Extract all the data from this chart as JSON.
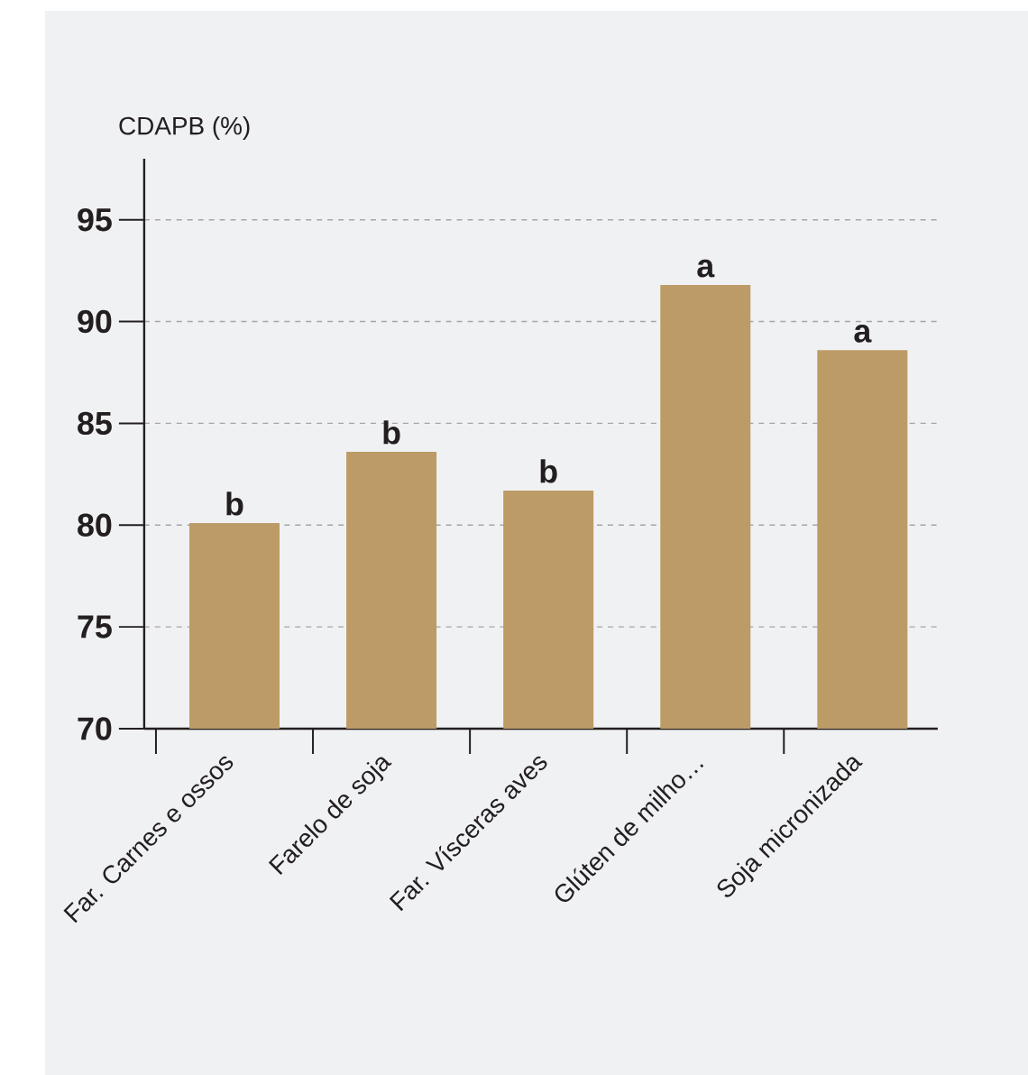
{
  "chart_data": {
    "type": "bar",
    "ylabel": "CDAPB (%)",
    "categories": [
      "Far. Carnes e ossos",
      "Farelo de soja",
      "Far. Vísceras aves",
      "Glúten de milho…",
      "Soja micronizada"
    ],
    "values": [
      80.1,
      83.6,
      81.7,
      91.8,
      88.6
    ],
    "color": "#bd9b67",
    "ylim": [
      70,
      98
    ],
    "yticks": [
      70,
      75,
      80,
      85,
      90,
      95
    ],
    "grid": "y",
    "annotations": [
      {
        "text": "b",
        "x": "Far. Carnes e ossos",
        "y": 80.1
      },
      {
        "text": "b",
        "x": "Farelo de soja",
        "y": 83.6
      },
      {
        "text": "b",
        "x": "Far. Vísceras aves",
        "y": 81.7
      },
      {
        "text": "a",
        "x": "Glúten de milho…",
        "y": 91.8
      },
      {
        "text": "a",
        "x": "Soja micronizada",
        "y": 88.6
      }
    ]
  }
}
